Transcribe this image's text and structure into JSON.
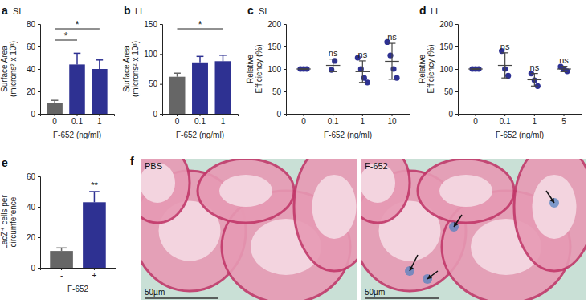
{
  "chart_data": [
    {
      "panel": "a",
      "type": "bar",
      "title": "SI",
      "categories": [
        "0",
        "0.1",
        "1"
      ],
      "values": [
        10,
        44,
        40
      ],
      "errors": [
        2,
        10,
        8
      ],
      "colors": [
        "#666666",
        "#2e3192",
        "#2e3192"
      ],
      "ylim": [
        0,
        80
      ],
      "yticks": [
        0,
        20,
        40,
        60,
        80
      ],
      "y_label": [
        "Surface Area",
        "(microns² x 10³)"
      ],
      "x_label": "F-652 (ng/ml)",
      "significance": [
        {
          "from": 0,
          "to": 2,
          "label": "*"
        },
        {
          "from": 0,
          "to": 1,
          "label": "*"
        }
      ]
    },
    {
      "panel": "b",
      "type": "bar",
      "title": "LI",
      "categories": [
        "0",
        "0.1",
        "1"
      ],
      "values": [
        62,
        86,
        88
      ],
      "errors": [
        6,
        10,
        10
      ],
      "colors": [
        "#666666",
        "#2e3192",
        "#2e3192"
      ],
      "ylim": [
        0,
        150
      ],
      "yticks": [
        0,
        50,
        100,
        150
      ],
      "y_label": [
        "Surface Area",
        "(microns² x 10³)"
      ],
      "x_label": "F-652 (ng/ml)",
      "significance": [
        {
          "from": 0,
          "to": 2,
          "label": "*"
        }
      ]
    },
    {
      "panel": "c",
      "type": "scatter",
      "title": "SI",
      "categories": [
        "0",
        "0.1",
        "1",
        "10"
      ],
      "points": [
        [
          100,
          100,
          100
        ],
        [
          98,
          118
        ],
        [
          125,
          100,
          80,
          70
        ],
        [
          160,
          130,
          100,
          80
        ]
      ],
      "means": [
        100,
        108,
        94,
        117
      ],
      "errors": [
        0,
        14,
        24,
        40
      ],
      "color": "#2e3192",
      "ylim": [
        0,
        200
      ],
      "yticks": [
        0,
        50,
        100,
        150,
        200
      ],
      "y_label": [
        "Relative",
        "Efficiency (%)"
      ],
      "x_label": "F-652 (ng/ml)",
      "annotations": [
        {
          "index": 1,
          "label": "ns"
        },
        {
          "index": 2,
          "label": "ns"
        },
        {
          "index": 3,
          "label": "ns"
        }
      ]
    },
    {
      "panel": "d",
      "type": "scatter",
      "title": "LI",
      "categories": [
        "0",
        "0.1",
        "1",
        "5"
      ],
      "points": [
        [
          100,
          100,
          100
        ],
        [
          140,
          100,
          85
        ],
        [
          90,
          75,
          62
        ],
        [
          105,
          100,
          95
        ]
      ],
      "means": [
        100,
        108,
        76,
        100
      ],
      "errors": [
        0,
        28,
        14,
        6
      ],
      "color": "#2e3192",
      "ylim": [
        0,
        200
      ],
      "yticks": [
        0,
        50,
        100,
        150,
        200
      ],
      "y_label": [
        "Relative",
        "Efficiency (%)"
      ],
      "x_label": "F-652 (ng/ml)",
      "annotations": [
        {
          "index": 1,
          "label": "ns"
        },
        {
          "index": 2,
          "label": "ns"
        },
        {
          "index": 3,
          "label": "ns"
        }
      ]
    },
    {
      "panel": "e",
      "type": "bar",
      "categories": [
        "-",
        "+"
      ],
      "values": [
        11,
        43
      ],
      "errors": [
        2,
        7
      ],
      "colors": [
        "#666666",
        "#2e3192"
      ],
      "ylim": [
        0,
        60
      ],
      "yticks": [
        0,
        20,
        40,
        60
      ],
      "y_label": [
        "LacZ⁺ cells per",
        "circumference"
      ],
      "x_label": "F-652",
      "annotations": [
        {
          "index": 1,
          "label": "**"
        }
      ]
    }
  ],
  "image_panel": {
    "panel": "f",
    "images": [
      {
        "title": "PBS",
        "scale_bar": "50µm"
      },
      {
        "title": "F-652",
        "scale_bar": "50µm",
        "arrows": 4
      }
    ]
  }
}
